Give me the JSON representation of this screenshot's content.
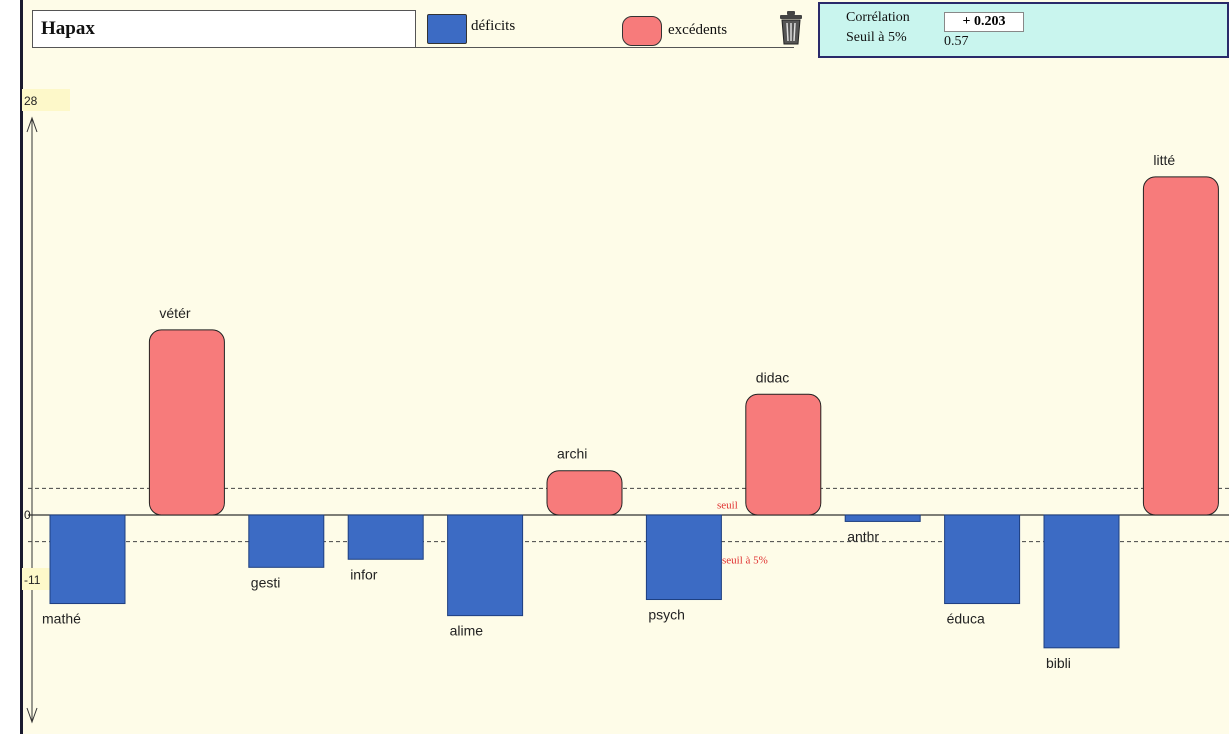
{
  "header": {
    "title": "Hapax",
    "legend_deficits": "déficits",
    "legend_excedents": "excédents",
    "trash_icon": "trash-can-icon"
  },
  "correlation": {
    "label": "Corrélation",
    "value": "+ 0.203",
    "seuil_label": "Seuil à 5%",
    "seuil_value": "0.57"
  },
  "colors": {
    "deficit": "#3c6bc4",
    "excedent": "#f77b7b",
    "background": "#fefce8"
  },
  "chart_data": {
    "type": "bar",
    "categories": [
      "mathé",
      "vétér",
      "gesti",
      "infor",
      "alime",
      "archi",
      "psych",
      "didac",
      "anthr",
      "éduca",
      "bibli",
      "litté"
    ],
    "values": [
      -11,
      23,
      -6.5,
      -5.5,
      -12.5,
      5.5,
      -10.5,
      15,
      -0.8,
      -11,
      -16.5,
      42
    ],
    "y_ticks": [
      "28",
      "0",
      "-11"
    ],
    "threshold_labels": [
      "seuil",
      "seuil à 5%"
    ],
    "threshold_values": [
      3.3,
      -3.3
    ],
    "ylim": [
      -28,
      50
    ]
  }
}
